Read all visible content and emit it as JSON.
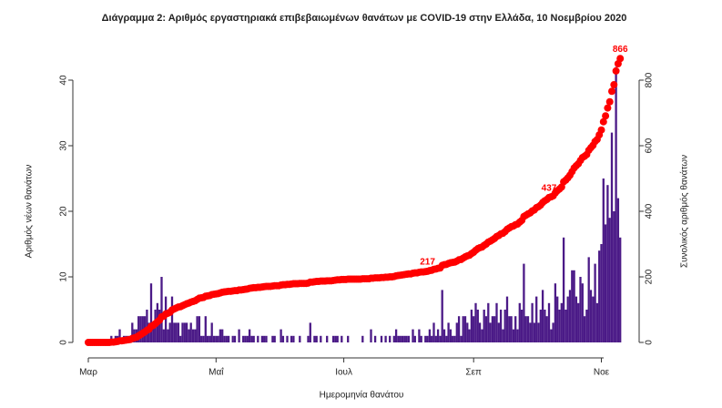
{
  "chart_data": {
    "type": "bar",
    "title": "Διάγραμμα 2: Αριθμός εργαστηριακά επιβεβαιωμένων θανάτων με COVID-19 στην Ελλάδα, 10 Νοεμβρίου 2020",
    "x_label": "Ημερομηνία θανάτου",
    "y_label": "Αριθμός νέων θανάτων",
    "y2_label": "Συνολικός αριθμός θανάτων",
    "categories": [
      "Μαρ",
      null,
      null,
      null,
      null,
      null,
      null,
      null,
      null,
      null,
      null,
      null,
      null,
      null,
      null,
      null,
      null,
      null,
      null,
      null,
      null,
      null,
      null,
      null,
      null,
      null,
      null,
      null,
      null,
      null,
      null,
      null,
      null,
      null,
      null,
      null,
      null,
      null,
      null,
      null,
      null,
      null,
      null,
      null,
      null,
      null,
      null,
      null,
      null,
      null,
      null,
      null,
      null,
      null,
      null,
      null,
      null,
      null,
      null,
      null,
      null,
      "Μαΐ",
      null,
      null,
      null,
      null,
      null,
      null,
      null,
      null,
      null,
      null,
      null,
      null,
      null,
      null,
      null,
      null,
      null,
      null,
      null,
      null,
      null,
      null,
      null,
      null,
      null,
      null,
      null,
      null,
      null,
      null,
      null,
      null,
      null,
      null,
      null,
      null,
      null,
      null,
      null,
      null,
      null,
      null,
      null,
      null,
      null,
      null,
      null,
      null,
      null,
      null,
      null,
      null,
      null,
      null,
      null,
      null,
      null,
      null,
      null,
      null,
      "Ιουλ",
      null,
      null,
      null,
      null,
      null,
      null,
      null,
      null,
      null,
      null,
      null,
      null,
      null,
      null,
      null,
      null,
      null,
      null,
      null,
      null,
      null,
      null,
      null,
      null,
      null,
      null,
      null,
      null,
      null,
      null,
      null,
      null,
      null,
      null,
      null,
      null,
      null,
      null,
      null,
      null,
      null,
      null,
      null,
      null,
      null,
      null,
      null,
      null,
      null,
      null,
      null,
      null,
      null,
      null,
      null,
      null,
      null,
      null,
      null,
      null,
      null,
      "Σεπ",
      null,
      null,
      null,
      null,
      null,
      null,
      null,
      null,
      null,
      null,
      null,
      null,
      null,
      null,
      null,
      null,
      null,
      null,
      null,
      null,
      null,
      null,
      null,
      null,
      null,
      null,
      null,
      null,
      null,
      null,
      null,
      null,
      null,
      null,
      null,
      null,
      null,
      null,
      null,
      null,
      null,
      null,
      null,
      null,
      null,
      null,
      null,
      null,
      null,
      null,
      null,
      null,
      null,
      null,
      null,
      null,
      null,
      null,
      null,
      null,
      "Νοε",
      null,
      null,
      null,
      null,
      null,
      null,
      null,
      null,
      null
    ],
    "series": [
      {
        "type": "bar",
        "color": "#4b1a87",
        "values": [
          0,
          0,
          0,
          0,
          0,
          0,
          0,
          0,
          0,
          0,
          0,
          1,
          0,
          1,
          1,
          2,
          0,
          1,
          1,
          1,
          1,
          3,
          2,
          2,
          4,
          4,
          4,
          4,
          5,
          3,
          9,
          3,
          5,
          6,
          5,
          10,
          2,
          7,
          2,
          3,
          7,
          3,
          3,
          3,
          1,
          3,
          3,
          3,
          2,
          3,
          2,
          2,
          4,
          4,
          1,
          1,
          4,
          1,
          1,
          3,
          1,
          1,
          1,
          2,
          2,
          1,
          1,
          1,
          0,
          1,
          1,
          0,
          2,
          0,
          1,
          1,
          1,
          2,
          1,
          1,
          0,
          1,
          0,
          1,
          1,
          1,
          0,
          0,
          1,
          1,
          0,
          0,
          2,
          1,
          0,
          1,
          0,
          1,
          1,
          0,
          0,
          1,
          0,
          0,
          0,
          1,
          3,
          0,
          1,
          1,
          0,
          1,
          0,
          0,
          1,
          0,
          0,
          1,
          1,
          1,
          0,
          1,
          0,
          0,
          1,
          0,
          0,
          0,
          0,
          0,
          0,
          1,
          0,
          0,
          0,
          2,
          0,
          1,
          0,
          0,
          1,
          0,
          1,
          0,
          1,
          0,
          1,
          2,
          1,
          1,
          1,
          1,
          1,
          1,
          0,
          2,
          1,
          0,
          2,
          1,
          0,
          1,
          1,
          2,
          1,
          3,
          1,
          2,
          1,
          8,
          2,
          1,
          3,
          2,
          1,
          1,
          3,
          4,
          1,
          4,
          4,
          3,
          2,
          5,
          4,
          6,
          5,
          3,
          2,
          5,
          4,
          6,
          3,
          4,
          4,
          6,
          3,
          5,
          2,
          5,
          7,
          4,
          4,
          2,
          4,
          2,
          6,
          5,
          12,
          4,
          4,
          3,
          6,
          3,
          7,
          3,
          5,
          8,
          5,
          4,
          6,
          2,
          3,
          9,
          7,
          5,
          6,
          16,
          5,
          7,
          8,
          11,
          11,
          7,
          6,
          10,
          9,
          4,
          5,
          13,
          8,
          7,
          12,
          6,
          14,
          15,
          25,
          18,
          24,
          19,
          32,
          20,
          42,
          22,
          16
        ]
      },
      {
        "type": "scatter",
        "axis": "y2",
        "color": "#ff0000",
        "values": [
          0,
          0,
          0,
          0,
          0,
          0,
          0,
          0,
          0,
          0,
          0,
          1,
          1,
          2,
          3,
          5,
          5,
          6,
          7,
          8,
          9,
          12,
          14,
          16,
          20,
          24,
          28,
          32,
          37,
          40,
          49,
          52,
          57,
          63,
          68,
          78,
          80,
          87,
          89,
          92,
          99,
          102,
          105,
          108,
          109,
          112,
          115,
          118,
          120,
          123,
          125,
          127,
          131,
          135,
          136,
          137,
          141,
          142,
          143,
          146,
          147,
          148,
          149,
          151,
          153,
          154,
          155,
          156,
          156,
          157,
          158,
          158,
          160,
          160,
          161,
          162,
          163,
          165,
          166,
          167,
          167,
          168,
          168,
          169,
          170,
          171,
          171,
          171,
          172,
          173,
          173,
          173,
          175,
          176,
          176,
          177,
          177,
          178,
          179,
          179,
          179,
          180,
          180,
          180,
          180,
          181,
          184,
          184,
          185,
          186,
          186,
          187,
          187,
          187,
          188,
          188,
          188,
          189,
          190,
          191,
          191,
          192,
          192,
          192,
          193,
          193,
          193,
          193,
          193,
          193,
          193,
          194,
          194,
          194,
          194,
          196,
          196,
          197,
          197,
          197,
          198,
          198,
          199,
          199,
          200,
          200,
          201,
          203,
          204,
          205,
          206,
          207,
          208,
          209,
          209,
          211,
          212,
          212,
          214,
          215,
          215,
          216,
          217,
          219,
          220,
          223,
          224,
          226,
          227,
          235,
          237,
          238,
          241,
          243,
          244,
          245,
          248,
          252,
          253,
          257,
          261,
          264,
          266,
          271,
          275,
          281,
          286,
          289,
          291,
          296,
          300,
          306,
          309,
          313,
          317,
          323,
          326,
          331,
          333,
          338,
          345,
          349,
          353,
          355,
          359,
          361,
          367,
          372,
          384,
          388,
          392,
          395,
          401,
          404,
          411,
          414,
          419,
          427,
          432,
          436,
          442,
          444,
          447,
          456,
          463,
          468,
          474,
          490,
          495,
          502,
          510,
          521,
          532,
          539,
          545,
          555,
          564,
          568,
          573,
          586,
          594,
          601,
          613,
          619,
          633,
          648,
          673,
          691,
          715,
          734,
          766,
          786,
          828,
          850,
          866
        ]
      }
    ],
    "annotations": [
      217,
      437,
      866
    ],
    "annotation_color": "#ff0000",
    "ylim": [
      0,
      40
    ],
    "yticks": [
      0,
      10,
      20,
      30,
      40
    ],
    "y2lim": [
      0,
      800
    ],
    "y2ticks": [
      0,
      200,
      400,
      600,
      800
    ],
    "grid": false
  }
}
